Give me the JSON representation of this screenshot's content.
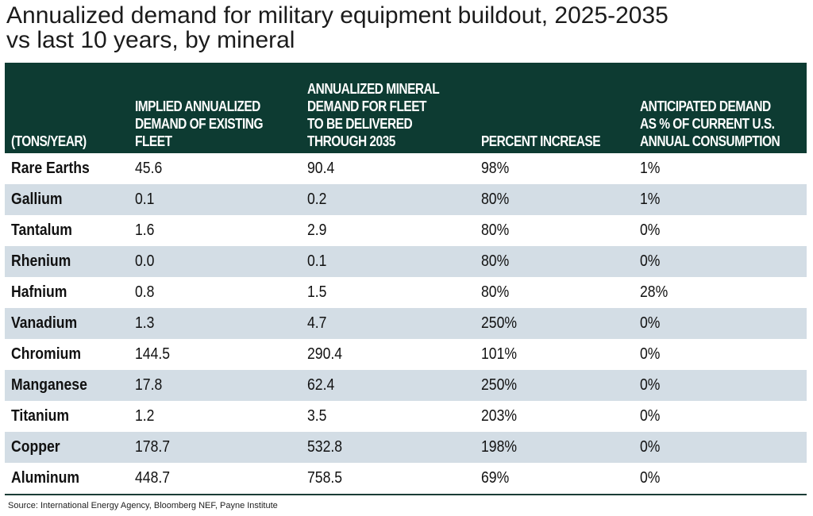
{
  "title": {
    "line1": "Annualized demand for military equipment buildout, 2025-2035",
    "line2": "vs last 10 years, by mineral"
  },
  "table": {
    "headers": [
      "(TONS/YEAR)",
      "IMPLIED ANNUALIZED\nDEMAND OF EXISTING\nFLEET",
      "ANNUALIZED MINERAL\nDEMAND FOR FLEET\nTO BE DELIVERED\nTHROUGH 2035",
      "PERCENT INCREASE",
      "ANTICIPATED DEMAND\nAS % OF CURRENT U.S.\nANNUAL CONSUMPTION"
    ],
    "rows": [
      [
        "Rare Earths",
        "45.6",
        "90.4",
        "98%",
        "1%"
      ],
      [
        "Gallium",
        "0.1",
        "0.2",
        "80%",
        "1%"
      ],
      [
        "Tantalum",
        "1.6",
        "2.9",
        "80%",
        "0%"
      ],
      [
        "Rhenium",
        "0.0",
        "0.1",
        "80%",
        "0%"
      ],
      [
        "Hafnium",
        "0.8",
        "1.5",
        "80%",
        "28%"
      ],
      [
        "Vanadium",
        "1.3",
        "4.7",
        "250%",
        "0%"
      ],
      [
        "Chromium",
        "144.5",
        "290.4",
        "101%",
        "0%"
      ],
      [
        "Manganese",
        "17.8",
        "62.4",
        "250%",
        "0%"
      ],
      [
        "Titanium",
        "1.2",
        "3.5",
        "203%",
        "0%"
      ],
      [
        "Copper",
        "178.7",
        "532.8",
        "198%",
        "0%"
      ],
      [
        "Aluminum",
        "448.7",
        "758.5",
        "69%",
        "0%"
      ]
    ]
  },
  "source": "Source: International Energy Agency, Bloomberg NEF, Payne Institute",
  "colors": {
    "header_bg": "#0d3b32",
    "alt_row_bg": "#d3dde5",
    "rule": "#1b3d36"
  }
}
